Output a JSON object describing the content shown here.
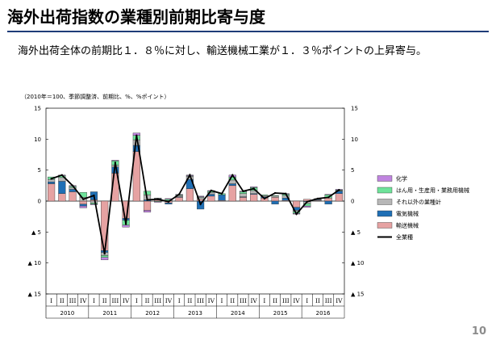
{
  "slide": {
    "title": "海外出荷指数の業種別前期比寄与度",
    "summary": "海外出荷全体の前期比１．８％に対し、輸送機械工業が１．３％ポイントの上昇寄与。",
    "page_number": "10"
  },
  "chart_data": {
    "type": "bar",
    "note": "（2010年＝100、季節調整済、前期比、%、%ポイント）",
    "ylim": [
      -15,
      15
    ],
    "y_ticks_left": [
      "15",
      "10",
      "5",
      "0",
      "▲ 5",
      "▲ 10",
      "▲ 15"
    ],
    "y_ticks_right": [
      "15",
      "10",
      "5",
      "0",
      "▲ 5",
      "▲ 10",
      "▲ 15"
    ],
    "y_tick_values": [
      15,
      10,
      5,
      0,
      -5,
      -10,
      -15
    ],
    "quarter_labels": [
      "I",
      "II",
      "III",
      "IV"
    ],
    "years": [
      "2010",
      "2011",
      "2012",
      "2013",
      "2014",
      "2015",
      "2016"
    ],
    "categories": [
      "2010 I",
      "2010 II",
      "2010 III",
      "2010 IV",
      "2011 I",
      "2011 II",
      "2011 III",
      "2011 IV",
      "2012 I",
      "2012 II",
      "2012 III",
      "2012 IV",
      "2013 I",
      "2013 II",
      "2013 III",
      "2013 IV",
      "2014 I",
      "2014 II",
      "2014 III",
      "2014 IV",
      "2015 I",
      "2015 II",
      "2015 III",
      "2015 IV",
      "2016 I",
      "2016 II",
      "2016 III",
      "2016 IV"
    ],
    "series": [
      {
        "name": "輸送機械",
        "color": "#e6a2a2",
        "values": [
          2.8,
          1.2,
          1.5,
          -0.5,
          0.2,
          -8.0,
          4.5,
          -2.8,
          8.0,
          -1.5,
          0.3,
          -0.3,
          0.6,
          2.0,
          0.3,
          0.8,
          0.1,
          2.5,
          0.6,
          1.1,
          0.5,
          0.6,
          0.1,
          -1.0,
          0.3,
          0.1,
          0.5,
          1.2
        ]
      },
      {
        "name": "電気機械",
        "color": "#1f6fb5",
        "values": [
          0.3,
          2.0,
          0.4,
          -0.3,
          1.3,
          -0.3,
          1.0,
          -0.3,
          1.0,
          0.2,
          0.1,
          -0.2,
          0.1,
          1.5,
          -1.3,
          0.3,
          0.9,
          0.3,
          0.1,
          0.1,
          0.2,
          -0.5,
          0.4,
          -0.5,
          -0.1,
          0.1,
          -0.5,
          0.4
        ]
      },
      {
        "name": "それ以外の業種計",
        "color": "#b7b7b7",
        "values": [
          0.4,
          0.6,
          0.3,
          0.6,
          -0.3,
          -0.5,
          0.3,
          0.0,
          0.9,
          0.8,
          0.1,
          0.1,
          0.2,
          0.5,
          0.3,
          0.3,
          0.0,
          0.6,
          0.5,
          0.5,
          0.2,
          0.2,
          0.4,
          -0.2,
          -0.3,
          0.1,
          0.0,
          0.1
        ]
      },
      {
        "name": "はん用・生産用・業務用機械",
        "color": "#6ee39a",
        "values": [
          0.4,
          0.3,
          0.2,
          0.8,
          -0.2,
          -0.3,
          0.7,
          -0.8,
          0.7,
          0.6,
          -0.1,
          0.2,
          0.1,
          0.1,
          0.1,
          0.2,
          0.2,
          0.5,
          0.3,
          0.5,
          0.1,
          0.1,
          0.2,
          -0.3,
          -0.4,
          0.1,
          0.5,
          0.1
        ]
      },
      {
        "name": "化学",
        "color": "#c084e0",
        "values": [
          0.0,
          0.1,
          0.1,
          -0.3,
          -0.1,
          -0.4,
          0.1,
          -0.3,
          0.4,
          -0.3,
          -0.1,
          0.1,
          0.1,
          0.1,
          0.1,
          0.1,
          0.0,
          0.3,
          0.1,
          0.1,
          0.0,
          0.0,
          0.1,
          -0.1,
          -0.2,
          0.0,
          0.1,
          0.1
        ]
      }
    ],
    "total": {
      "name": "全業種",
      "color": "#000000",
      "values": [
        3.6,
        4.2,
        2.5,
        0.3,
        0.9,
        -8.5,
        6.2,
        -3.7,
        10.6,
        0.2,
        0.3,
        -0.1,
        1.1,
        4.2,
        -0.5,
        1.7,
        1.2,
        4.2,
        1.6,
        2.0,
        0.4,
        1.3,
        1.2,
        -2.1,
        -0.1,
        0.4,
        0.6,
        1.8
      ]
    },
    "legend_order": [
      "化学",
      "はん用・生産用・業務用機械",
      "それ以外の業種計",
      "電気機械",
      "輸送機械",
      "全業種"
    ],
    "legend_position": "right"
  }
}
